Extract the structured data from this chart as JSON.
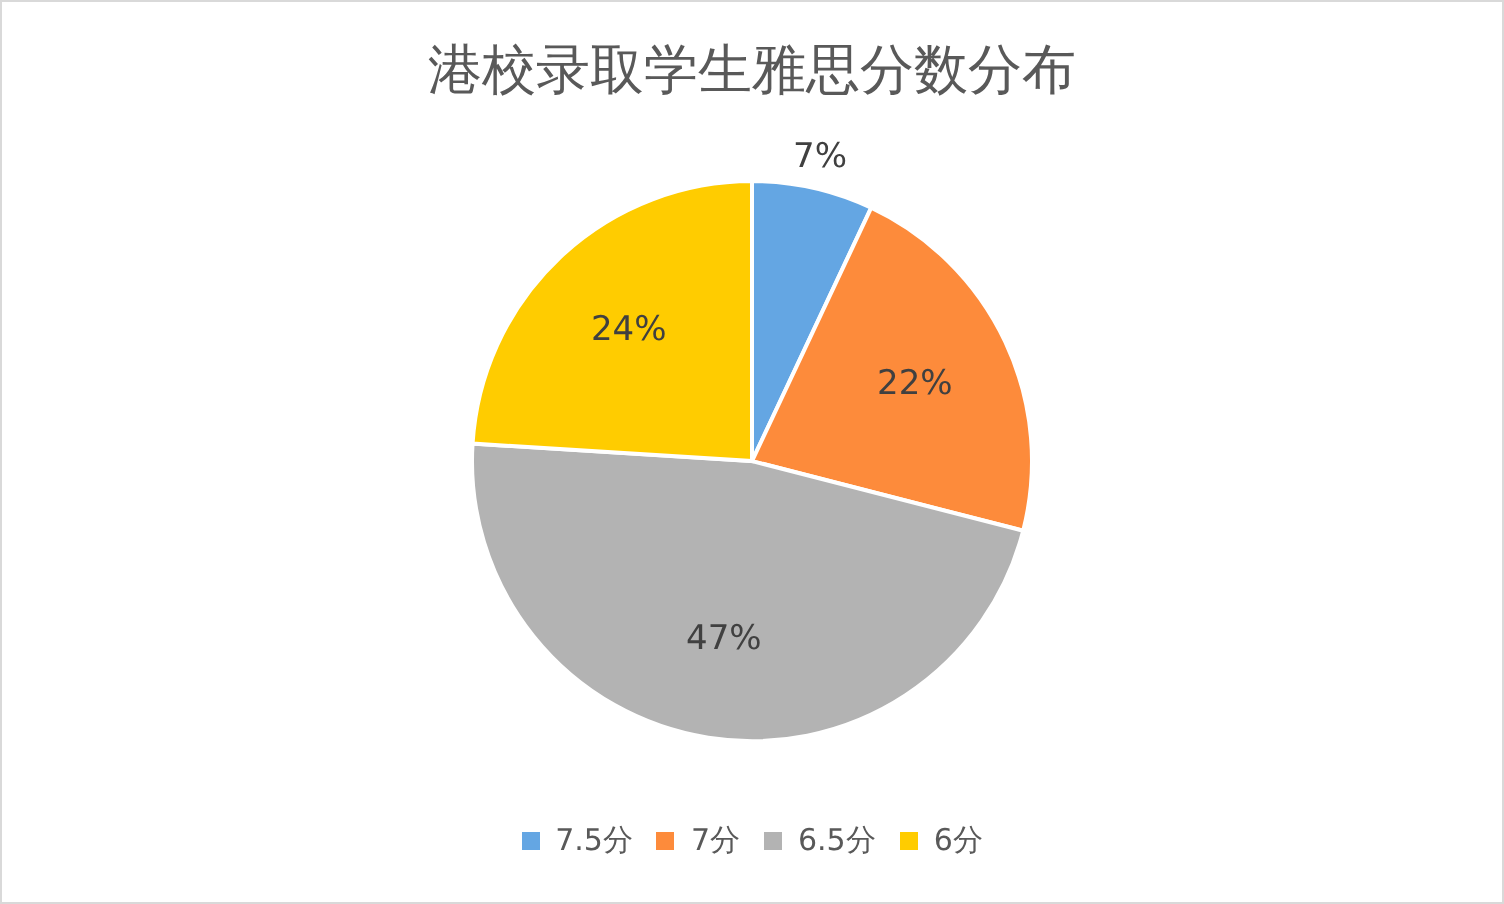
{
  "chart_data": {
    "type": "pie",
    "title": "港校录取学生雅思分数分布",
    "categories": [
      "7.5分",
      "7分",
      "6.5分",
      "6分"
    ],
    "values": [
      7,
      22,
      47,
      24
    ],
    "value_labels": [
      "7%",
      "22%",
      "47%",
      "24%"
    ],
    "colors": [
      "#64a6e3",
      "#fd8b3b",
      "#b3b3b3",
      "#ffcc00"
    ],
    "legend": "bottom"
  }
}
